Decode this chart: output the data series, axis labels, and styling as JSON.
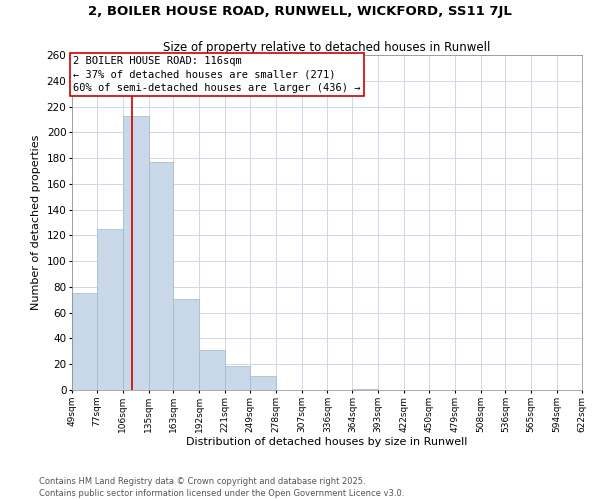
{
  "title": "2, BOILER HOUSE ROAD, RUNWELL, WICKFORD, SS11 7JL",
  "subtitle": "Size of property relative to detached houses in Runwell",
  "xlabel": "Distribution of detached houses by size in Runwell",
  "ylabel": "Number of detached properties",
  "bin_edges": [
    49,
    77,
    106,
    135,
    163,
    192,
    221,
    249,
    278,
    307,
    336,
    364,
    393,
    422,
    450,
    479,
    508,
    536,
    565,
    594,
    622
  ],
  "bar_heights": [
    75,
    125,
    213,
    177,
    71,
    31,
    19,
    11,
    0,
    0,
    0,
    1,
    0,
    0,
    0,
    0,
    0,
    0,
    0,
    0
  ],
  "bar_color": "#c8d8e8",
  "bar_edgecolor": "#a0b8cc",
  "vline_x": 116,
  "vline_color": "#cc0000",
  "ylim": [
    0,
    260
  ],
  "yticks": [
    0,
    20,
    40,
    60,
    80,
    100,
    120,
    140,
    160,
    180,
    200,
    220,
    240,
    260
  ],
  "annotation_text": "2 BOILER HOUSE ROAD: 116sqm\n← 37% of detached houses are smaller (271)\n60% of semi-detached houses are larger (436) →",
  "background_color": "#ffffff",
  "grid_color": "#d0d8e8",
  "footer_line1": "Contains HM Land Registry data © Crown copyright and database right 2025.",
  "footer_line2": "Contains public sector information licensed under the Open Government Licence v3.0.",
  "title_fontsize": 9.5,
  "subtitle_fontsize": 8.5,
  "xlabel_fontsize": 8,
  "ylabel_fontsize": 8,
  "annotation_fontsize": 7.5,
  "footer_fontsize": 6.0
}
